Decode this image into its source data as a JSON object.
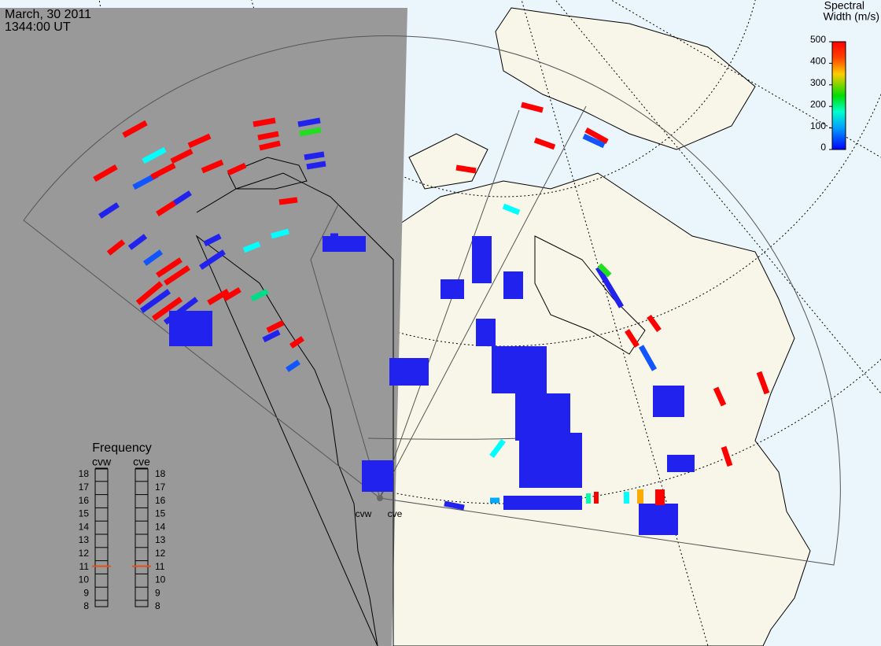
{
  "header": {
    "date": "March, 30 2011",
    "time": "1344:00 UT"
  },
  "colorbar": {
    "title_lines": [
      "Spectral",
      "Width (m/s)"
    ],
    "lim": [
      0,
      500
    ],
    "ticks": [
      0,
      100,
      200,
      300,
      400,
      500
    ]
  },
  "frequency": {
    "title": "Frequency",
    "lim": [
      8,
      18
    ],
    "radars": [
      {
        "name": "cvw",
        "ticks": [
          8,
          9,
          10,
          11,
          12,
          13,
          14,
          15,
          16,
          17,
          18
        ],
        "value": 11
      },
      {
        "name": "cve",
        "ticks": [
          8,
          9,
          10,
          11,
          12,
          13,
          14,
          15,
          16,
          17,
          18
        ],
        "value": 11
      }
    ]
  },
  "sites": [
    "cvw",
    "cve"
  ]
}
